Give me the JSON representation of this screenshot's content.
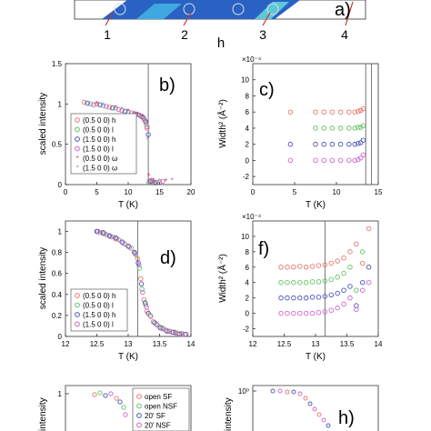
{
  "top_strip": {
    "panel_label": "a)",
    "h_markers": [
      "1",
      "2",
      "3",
      "4"
    ],
    "xlabel": "h"
  },
  "chart_data": [
    {
      "type": "scatter",
      "panel_label": "b)",
      "xlabel": "T (K)",
      "ylabel": "scaled intensity",
      "xlim": [
        0,
        20
      ],
      "ylim": [
        0,
        1.5
      ],
      "xticks": [
        "0",
        "5",
        "10",
        "15",
        "20"
      ],
      "yticks": [
        "0",
        "0.5",
        "1",
        "1.5"
      ],
      "vline_x": 13.2,
      "legend": {
        "placement": "bottom-left"
      },
      "series": [
        {
          "name": "(0.5 0 0) h",
          "color": "#e8776b",
          "marker": "circle",
          "x": [
            3,
            5,
            7,
            9,
            11,
            12,
            12.6,
            13,
            13.4,
            14,
            15
          ],
          "y": [
            1.02,
            1.0,
            0.96,
            0.92,
            0.88,
            0.85,
            0.8,
            0.7,
            0.05,
            0.03,
            0.03
          ]
        },
        {
          "name": "(0.5 0 0) l",
          "color": "#62c462",
          "marker": "circle",
          "x": [
            4,
            6,
            8,
            10,
            11.5,
            12.4,
            12.9,
            13.3,
            13.8,
            14.5
          ],
          "y": [
            1.0,
            0.98,
            0.95,
            0.9,
            0.87,
            0.83,
            0.75,
            0.02,
            0.02,
            0.03
          ]
        },
        {
          "name": "(1.5 0 0) h",
          "color": "#4a55b8",
          "marker": "circle",
          "x": [
            3.5,
            5.5,
            7.5,
            9.5,
            11.2,
            12.2,
            12.8,
            13.2,
            13.6,
            14.3
          ],
          "y": [
            1.01,
            0.99,
            0.95,
            0.91,
            0.87,
            0.84,
            0.78,
            0.62,
            0.04,
            0.02
          ]
        },
        {
          "name": "(1.5 0 0) l",
          "color": "#cc66cc",
          "marker": "circle",
          "x": [
            4.5,
            6.5,
            8.5,
            10.5,
            11.8,
            12.5,
            13.0,
            13.5,
            14.2,
            15.5
          ],
          "y": [
            0.99,
            0.97,
            0.93,
            0.89,
            0.86,
            0.82,
            0.72,
            0.03,
            0.03,
            0.04
          ]
        },
        {
          "name": "(0.5 0 0) ω",
          "color": "#e03c5a",
          "marker": "asterisk",
          "x": [
            5,
            8,
            10,
            11.5,
            12.3,
            12.9,
            13.3,
            14,
            16
          ],
          "y": [
            1.0,
            0.95,
            0.91,
            0.87,
            0.84,
            0.77,
            0.1,
            0.05,
            0.04
          ]
        },
        {
          "name": "(1.5 0 0) ω",
          "color": "#8a8ae8",
          "marker": "asterisk",
          "x": [
            6,
            9,
            11,
            12,
            12.7,
            13.1,
            13.7,
            15,
            17
          ],
          "y": [
            0.98,
            0.93,
            0.88,
            0.85,
            0.8,
            0.55,
            0.05,
            0.04,
            0.05
          ]
        }
      ]
    },
    {
      "type": "scatter",
      "panel_label": "c)",
      "xlabel": "T (K)",
      "ylabel": "Width² (Å⁻²)",
      "scale_note": "×10⁻⁴",
      "xlim": [
        0,
        15
      ],
      "ylim": [
        -3,
        12
      ],
      "xticks": [
        "0",
        "5",
        "10",
        "15"
      ],
      "yticks": [
        "-2",
        "0",
        "2",
        "4",
        "6",
        "8",
        "10"
      ],
      "vlines_x": [
        13.5,
        14.2
      ],
      "series": [
        {
          "color": "#e8776b",
          "x": [
            4.5,
            7.5,
            8.5,
            9.5,
            10.5,
            11.5,
            12.2,
            12.6,
            12.9,
            13.2
          ],
          "y": [
            6,
            6,
            6,
            6,
            6,
            6,
            6,
            6.1,
            6.2,
            6.4
          ]
        },
        {
          "color": "#62c462",
          "x": [
            7.5,
            8.5,
            9.5,
            10.5,
            11.5,
            12.2,
            12.6,
            12.9,
            13.2
          ],
          "y": [
            4,
            4,
            4,
            4,
            4,
            4,
            4.1,
            4.1,
            4.3
          ]
        },
        {
          "color": "#4a55b8",
          "x": [
            4.5,
            7.5,
            8.5,
            9.5,
            10.5,
            11.5,
            12.2,
            12.6,
            12.9,
            13.2
          ],
          "y": [
            2,
            2,
            2,
            2,
            2,
            2,
            2,
            2.1,
            2.2,
            2.5
          ]
        },
        {
          "color": "#cc66cc",
          "x": [
            4.5,
            7.5,
            8.5,
            9.5,
            10.5,
            11.5,
            12.2,
            12.6,
            12.9,
            13.2
          ],
          "y": [
            0,
            0,
            0,
            0,
            0,
            0,
            0,
            0.1,
            0.3,
            0.7
          ]
        }
      ]
    },
    {
      "type": "scatter",
      "panel_label": "d)",
      "xlabel": "T (K)",
      "ylabel": "scaled intensity",
      "xlim": [
        12,
        14
      ],
      "ylim": [
        0,
        1.1
      ],
      "xticks": [
        "12",
        "12.5",
        "13",
        "13.5",
        "14"
      ],
      "yticks": [
        "0",
        "0.2",
        "0.4",
        "0.6",
        "0.8",
        "1"
      ],
      "vline_x": 13.15,
      "legend": {
        "placement": "bottom-left"
      },
      "series": [
        {
          "name": "(0.5 0 0) h",
          "color": "#e8776b",
          "x": [
            12.5,
            12.6,
            12.7,
            12.8,
            12.9,
            13.0,
            13.1,
            13.15,
            13.2,
            13.25,
            13.3,
            13.4,
            13.5,
            13.6,
            13.7,
            13.8,
            13.9
          ],
          "y": [
            1.0,
            0.98,
            0.96,
            0.93,
            0.9,
            0.86,
            0.8,
            0.74,
            0.55,
            0.35,
            0.24,
            0.14,
            0.09,
            0.06,
            0.04,
            0.03,
            0.02
          ]
        },
        {
          "name": "(0.5 0 0) l",
          "color": "#62c462",
          "x": [
            12.55,
            12.65,
            12.75,
            12.85,
            12.95,
            13.05,
            13.12,
            13.18,
            13.22,
            13.28,
            13.35,
            13.45,
            13.55,
            13.65,
            13.75,
            13.85
          ],
          "y": [
            0.99,
            0.97,
            0.95,
            0.92,
            0.88,
            0.84,
            0.78,
            0.65,
            0.45,
            0.3,
            0.2,
            0.12,
            0.08,
            0.05,
            0.04,
            0.03
          ]
        },
        {
          "name": "(1.5 0 0) h",
          "color": "#4a55b8",
          "x": [
            12.5,
            12.6,
            12.7,
            12.8,
            12.9,
            13.0,
            13.1,
            13.16,
            13.21,
            13.27,
            13.32,
            13.42,
            13.52,
            13.62,
            13.72,
            13.82,
            13.92
          ],
          "y": [
            1.0,
            0.99,
            0.96,
            0.94,
            0.9,
            0.86,
            0.8,
            0.7,
            0.5,
            0.32,
            0.22,
            0.13,
            0.08,
            0.05,
            0.04,
            0.02,
            0.02
          ]
        },
        {
          "name": "(1.5 0 0) l",
          "color": "#cc66cc",
          "x": [
            12.52,
            12.62,
            12.72,
            12.82,
            12.92,
            13.02,
            13.11,
            13.17,
            13.23,
            13.29,
            13.36,
            13.46,
            13.56,
            13.66,
            13.76,
            13.86
          ],
          "y": [
            1.0,
            0.98,
            0.95,
            0.93,
            0.89,
            0.85,
            0.79,
            0.68,
            0.42,
            0.28,
            0.19,
            0.11,
            0.07,
            0.05,
            0.03,
            0.02
          ]
        }
      ]
    },
    {
      "type": "scatter",
      "panel_label": "f)",
      "xlabel": "T (K)",
      "ylabel": "Width² (Å⁻²)",
      "scale_note": "×10⁻⁴",
      "xlim": [
        12,
        14
      ],
      "ylim": [
        -3,
        12
      ],
      "xticks": [
        "12",
        "12.5",
        "13",
        "13.5",
        "14"
      ],
      "yticks": [
        "-2",
        "0",
        "2",
        "4",
        "6",
        "8",
        "10"
      ],
      "vline_x": 13.15,
      "series": [
        {
          "color": "#e8776b",
          "x": [
            12.45,
            12.55,
            12.65,
            12.75,
            12.85,
            12.95,
            13.05,
            13.15,
            13.25,
            13.35,
            13.45,
            13.55,
            13.65,
            13.75,
            13.85
          ],
          "y": [
            6,
            6,
            6,
            6.1,
            6,
            6.1,
            6.2,
            6.3,
            6.5,
            6.8,
            7.2,
            8,
            9,
            6.5,
            11
          ]
        },
        {
          "color": "#62c462",
          "x": [
            12.45,
            12.55,
            12.65,
            12.75,
            12.85,
            12.95,
            13.05,
            13.15,
            13.25,
            13.35,
            13.45,
            13.55,
            13.65,
            13.75
          ],
          "y": [
            4,
            4,
            4,
            4,
            4,
            4.1,
            4.1,
            4.2,
            4.4,
            4.7,
            5.2,
            6,
            3,
            8
          ]
        },
        {
          "color": "#4a55b8",
          "x": [
            12.45,
            12.55,
            12.65,
            12.75,
            12.85,
            12.95,
            13.05,
            13.15,
            13.25,
            13.35,
            13.45,
            13.55,
            13.65,
            13.75,
            13.85
          ],
          "y": [
            2,
            2,
            2,
            2,
            2,
            2.1,
            2.1,
            2.2,
            2.4,
            2.6,
            3,
            3.5,
            1,
            4,
            6
          ]
        },
        {
          "color": "#cc66cc",
          "x": [
            12.45,
            12.55,
            12.65,
            12.75,
            12.85,
            12.95,
            13.05,
            13.15,
            13.25,
            13.35,
            13.45,
            13.55,
            13.65,
            13.75,
            13.85
          ],
          "y": [
            0,
            0,
            0,
            0,
            0,
            0,
            0.1,
            0.2,
            0.4,
            0.7,
            1.2,
            2,
            0.5,
            3,
            4
          ]
        }
      ]
    },
    {
      "type": "scatter",
      "panel_label": "",
      "ylabel": "intensity",
      "yticks": [
        "1"
      ],
      "legend": {
        "placement": "top-right",
        "entries": [
          {
            "name": "open SF",
            "color": "#e8776b"
          },
          {
            "name": "open NSF",
            "color": "#62c462"
          },
          {
            "name": "20' SF",
            "color": "#4a55b8"
          },
          {
            "name": "20' NSF",
            "color": "#cc66cc"
          }
        ]
      }
    },
    {
      "type": "scatter",
      "panel_label": "h)",
      "ylabel": "intensity",
      "yscale": "log",
      "yticks": [
        "10⁰"
      ]
    }
  ]
}
